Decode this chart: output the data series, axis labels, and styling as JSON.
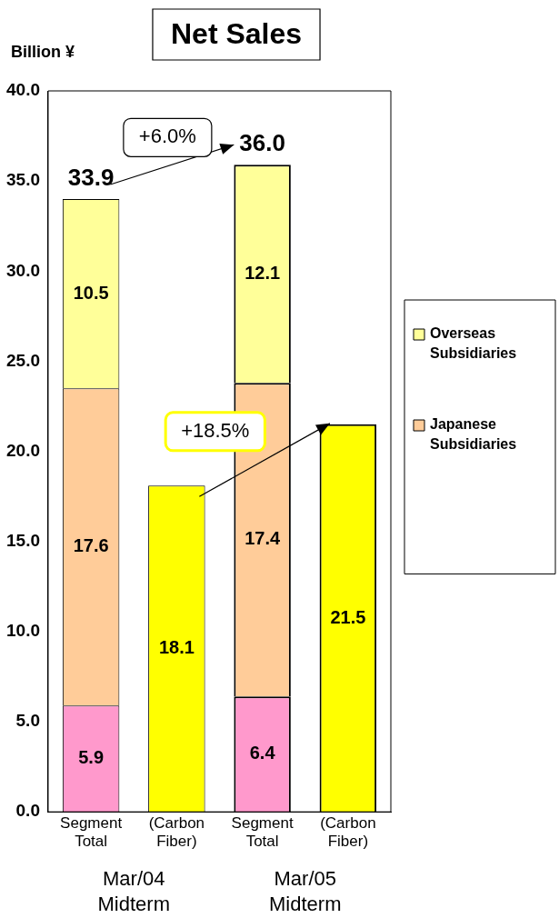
{
  "chart_data": {
    "type": "bar",
    "title": "Net Sales",
    "ylabel": "Billion ¥",
    "categories": [
      "Segment Total",
      "(Carbon Fiber)",
      "Segment Total",
      "(Carbon Fiber)"
    ],
    "series": [
      {
        "color": "#ff99cc",
        "values": [
          5.9,
          null,
          6.4,
          null
        ]
      },
      {
        "name": "Japanese Subsidiaries",
        "color": "#ffcc99",
        "values": [
          17.6,
          null,
          17.4,
          null
        ]
      },
      {
        "name": "Overseas Subsidiaries",
        "color": "#ffff99",
        "values": [
          10.5,
          null,
          12.1,
          null
        ]
      },
      {
        "color": "#ffff00",
        "values": [
          null,
          18.1,
          null,
          21.5
        ]
      }
    ],
    "stacked": true,
    "data_labels": true,
    "totals": [
      "33.9",
      null,
      "36.0",
      null
    ],
    "ylim": [
      0,
      40
    ],
    "yticks": [
      {
        "value": 0,
        "label": "0.0"
      },
      {
        "value": 5,
        "label": "5.0"
      },
      {
        "value": 10,
        "label": "10.0"
      },
      {
        "value": 15,
        "label": "15.0"
      },
      {
        "value": 20,
        "label": "20.0"
      },
      {
        "value": 25,
        "label": "25.0"
      },
      {
        "value": 30,
        "label": "30.0"
      },
      {
        "value": 35,
        "label": "35.0"
      },
      {
        "value": 40,
        "label": "40.0"
      }
    ],
    "grid": false,
    "legend": "right",
    "annotations": [
      "+6.0%",
      "+18.5%",
      "Mar/04 Midterm",
      "Mar/05 Midterm"
    ]
  }
}
